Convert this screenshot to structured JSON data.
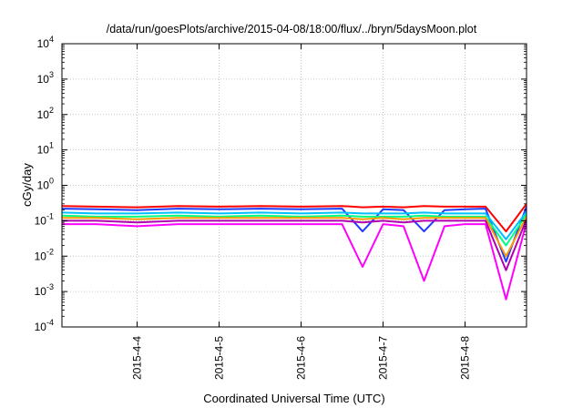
{
  "chart_data": {
    "type": "line",
    "title": "/data/run/goesPlots/archive/2015-04-08/18:00/flux/../bryn/5daysMoon.plot",
    "xlabel": "Coordinated Universal Time (UTC)",
    "ylabel": "cGy/day",
    "yscale": "log",
    "ylim": [
      0.0001,
      10000
    ],
    "xlim": [
      "2015-04-03 02:00",
      "2015-04-08 18:00"
    ],
    "grid": true,
    "y_ticks": [
      {
        "base": "10",
        "exp": "-4"
      },
      {
        "base": "10",
        "exp": "-3"
      },
      {
        "base": "10",
        "exp": "-2"
      },
      {
        "base": "10",
        "exp": "-1"
      },
      {
        "base": "10",
        "exp": "0"
      },
      {
        "base": "10",
        "exp": "1"
      },
      {
        "base": "10",
        "exp": "2"
      },
      {
        "base": "10",
        "exp": "3"
      },
      {
        "base": "10",
        "exp": "4"
      }
    ],
    "x_ticks": [
      "2015-4-4",
      "2015-4-5",
      "2015-4-6",
      "2015-4-7",
      "2015-4-8"
    ],
    "x": [
      "2015-04-03 02:00",
      "2015-04-03 12:00",
      "2015-04-04 00:00",
      "2015-04-04 12:00",
      "2015-04-05 00:00",
      "2015-04-05 12:00",
      "2015-04-06 00:00",
      "2015-04-06 12:00",
      "2015-04-06 18:00",
      "2015-04-07 00:00",
      "2015-04-07 06:00",
      "2015-04-07 12:00",
      "2015-04-07 18:00",
      "2015-04-08 00:00",
      "2015-04-08 06:00",
      "2015-04-08 12:00",
      "2015-04-08 18:00"
    ],
    "series": [
      {
        "color": "#ff0000",
        "values": [
          0.26,
          0.25,
          0.24,
          0.26,
          0.25,
          0.26,
          0.25,
          0.26,
          0.24,
          0.25,
          0.24,
          0.26,
          0.25,
          0.25,
          0.25,
          0.05,
          0.3
        ]
      },
      {
        "color": "#1e3cff",
        "values": [
          0.22,
          0.21,
          0.2,
          0.22,
          0.21,
          0.22,
          0.21,
          0.22,
          0.05,
          0.21,
          0.2,
          0.05,
          0.2,
          0.21,
          0.22,
          0.007,
          0.25
        ]
      },
      {
        "color": "#00c0ff",
        "values": [
          0.17,
          0.16,
          0.16,
          0.17,
          0.16,
          0.17,
          0.16,
          0.17,
          0.16,
          0.16,
          0.16,
          0.17,
          0.16,
          0.16,
          0.16,
          0.03,
          0.18
        ]
      },
      {
        "color": "#00ff80",
        "values": [
          0.14,
          0.13,
          0.13,
          0.14,
          0.13,
          0.14,
          0.13,
          0.14,
          0.13,
          0.13,
          0.13,
          0.14,
          0.13,
          0.13,
          0.13,
          0.02,
          0.15
        ]
      },
      {
        "color": "#ff9900",
        "values": [
          0.12,
          0.12,
          0.11,
          0.12,
          0.12,
          0.12,
          0.12,
          0.12,
          0.11,
          0.12,
          0.11,
          0.12,
          0.12,
          0.12,
          0.12,
          0.01,
          0.13
        ]
      },
      {
        "color": "#b000b0",
        "values": [
          0.1,
          0.1,
          0.09,
          0.1,
          0.1,
          0.1,
          0.1,
          0.1,
          0.09,
          0.1,
          0.09,
          0.1,
          0.1,
          0.1,
          0.1,
          0.004,
          0.11
        ]
      },
      {
        "color": "#ff00ff",
        "values": [
          0.08,
          0.08,
          0.07,
          0.08,
          0.08,
          0.08,
          0.08,
          0.08,
          0.005,
          0.08,
          0.07,
          0.002,
          0.07,
          0.08,
          0.08,
          0.0006,
          0.09
        ]
      }
    ]
  }
}
